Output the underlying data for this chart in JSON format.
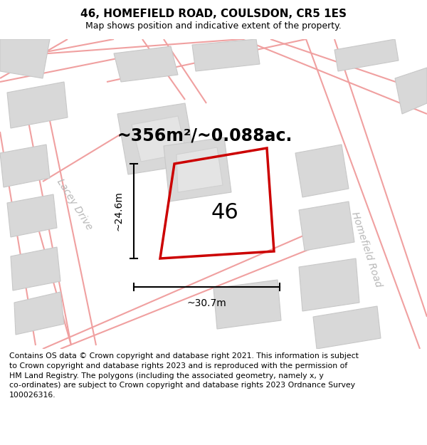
{
  "title_line1": "46, HOMEFIELD ROAD, COULSDON, CR5 1ES",
  "title_line2": "Map shows position and indicative extent of the property.",
  "area_text": "~356m²/~0.088ac.",
  "label_46": "46",
  "dim_height_label": "~24.6m",
  "dim_width_label": "~30.7m",
  "road_label_left": "Lacey Drive",
  "road_label_right": "Homefield Road",
  "footer_text": "Contains OS data © Crown copyright and database right 2021. This information is subject\nto Crown copyright and database rights 2023 and is reproduced with the permission of\nHM Land Registry. The polygons (including the associated geometry, namely x, y\nco-ordinates) are subject to Crown copyright and database rights 2023 Ordnance Survey\n100026316.",
  "road_line_color": "#f0a0a0",
  "building_fill": "#d8d8d8",
  "building_edge": "#c8c8c8",
  "inner_fill": "#e4e4e4",
  "inner_edge": "#d0d0d0",
  "plot_color": "#cc0000",
  "dim_color": "#000000",
  "road_text_color": "#b8b8b8",
  "title_fontsize": 11,
  "subtitle_fontsize": 9,
  "area_fontsize": 17,
  "number_fontsize": 22,
  "dim_fontsize": 10,
  "road_fontsize": 10,
  "footer_fontsize": 7.8
}
